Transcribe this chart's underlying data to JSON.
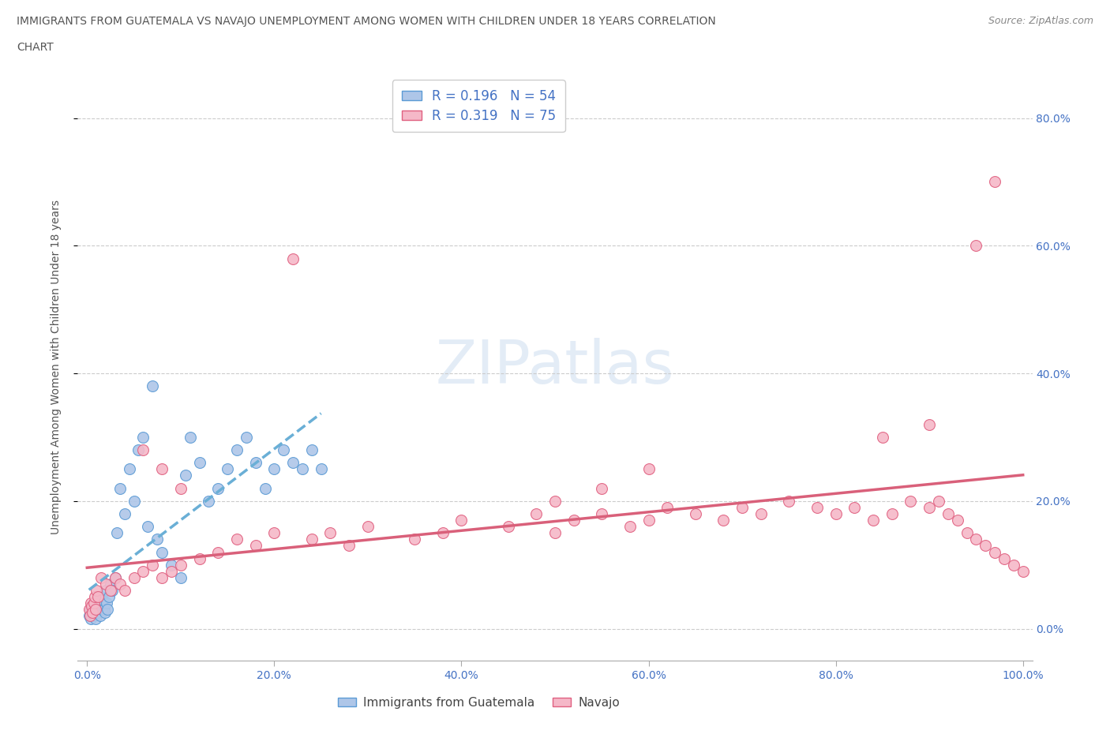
{
  "title_line1": "IMMIGRANTS FROM GUATEMALA VS NAVAJO UNEMPLOYMENT AMONG WOMEN WITH CHILDREN UNDER 18 YEARS CORRELATION",
  "title_line2": "CHART",
  "source": "Source: ZipAtlas.com",
  "ylabel": "Unemployment Among Women with Children Under 18 years",
  "watermark": "ZIPatlas",
  "blue_R": 0.196,
  "blue_N": 54,
  "pink_R": 0.319,
  "pink_N": 75,
  "blue_color": "#aec6e8",
  "pink_color": "#f5b8c8",
  "blue_edge_color": "#5b9bd5",
  "pink_edge_color": "#e06080",
  "blue_line_color": "#6aafd6",
  "pink_line_color": "#d9607a",
  "title_color": "#555555",
  "axis_label_color": "#4472c4",
  "legend_text_color": "#4472c4",
  "source_color": "#888888",
  "grid_color": "#cccccc",
  "blue_scatter_x": [
    0.2,
    0.3,
    0.4,
    0.5,
    0.6,
    0.7,
    0.8,
    0.9,
    1.0,
    1.1,
    1.2,
    1.3,
    1.4,
    1.5,
    1.6,
    1.7,
    1.8,
    1.9,
    2.0,
    2.1,
    2.2,
    2.3,
    2.5,
    2.7,
    3.0,
    3.2,
    3.5,
    4.0,
    4.5,
    5.0,
    5.5,
    6.0,
    6.5,
    7.0,
    7.5,
    8.0,
    9.0,
    10.0,
    10.5,
    11.0,
    12.0,
    13.0,
    14.0,
    15.0,
    16.0,
    17.0,
    18.0,
    19.0,
    20.0,
    21.0,
    22.0,
    23.0,
    24.0,
    25.0
  ],
  "blue_scatter_y": [
    2.0,
    3.0,
    1.5,
    2.5,
    3.5,
    2.0,
    4.0,
    1.5,
    3.0,
    2.5,
    4.0,
    3.5,
    2.0,
    5.0,
    3.0,
    4.5,
    3.0,
    2.5,
    6.0,
    4.0,
    3.0,
    5.0,
    7.0,
    6.0,
    8.0,
    15.0,
    22.0,
    18.0,
    25.0,
    20.0,
    28.0,
    30.0,
    16.0,
    38.0,
    14.0,
    12.0,
    10.0,
    8.0,
    24.0,
    30.0,
    26.0,
    20.0,
    22.0,
    25.0,
    28.0,
    30.0,
    26.0,
    22.0,
    25.0,
    28.0,
    26.0,
    25.0,
    28.0,
    25.0
  ],
  "pink_scatter_x": [
    0.2,
    0.3,
    0.4,
    0.5,
    0.6,
    0.7,
    0.8,
    0.9,
    1.0,
    1.2,
    1.5,
    2.0,
    2.5,
    3.0,
    3.5,
    4.0,
    5.0,
    6.0,
    7.0,
    8.0,
    9.0,
    10.0,
    12.0,
    14.0,
    16.0,
    18.0,
    20.0,
    22.0,
    24.0,
    26.0,
    28.0,
    30.0,
    35.0,
    38.0,
    40.0,
    45.0,
    48.0,
    50.0,
    52.0,
    55.0,
    58.0,
    60.0,
    62.0,
    65.0,
    68.0,
    70.0,
    72.0,
    75.0,
    78.0,
    80.0,
    82.0,
    84.0,
    86.0,
    88.0,
    90.0,
    91.0,
    92.0,
    93.0,
    94.0,
    95.0,
    96.0,
    97.0,
    98.0,
    99.0,
    100.0,
    6.0,
    8.0,
    10.0,
    50.0,
    55.0,
    60.0,
    85.0,
    90.0,
    95.0,
    97.0
  ],
  "pink_scatter_y": [
    3.0,
    2.0,
    4.0,
    3.5,
    2.5,
    4.0,
    5.0,
    3.0,
    6.0,
    5.0,
    8.0,
    7.0,
    6.0,
    8.0,
    7.0,
    6.0,
    8.0,
    9.0,
    10.0,
    8.0,
    9.0,
    10.0,
    11.0,
    12.0,
    14.0,
    13.0,
    15.0,
    58.0,
    14.0,
    15.0,
    13.0,
    16.0,
    14.0,
    15.0,
    17.0,
    16.0,
    18.0,
    15.0,
    17.0,
    18.0,
    16.0,
    17.0,
    19.0,
    18.0,
    17.0,
    19.0,
    18.0,
    20.0,
    19.0,
    18.0,
    19.0,
    17.0,
    18.0,
    20.0,
    19.0,
    20.0,
    18.0,
    17.0,
    15.0,
    14.0,
    13.0,
    12.0,
    11.0,
    10.0,
    9.0,
    28.0,
    25.0,
    22.0,
    20.0,
    22.0,
    25.0,
    30.0,
    32.0,
    60.0,
    70.0
  ]
}
